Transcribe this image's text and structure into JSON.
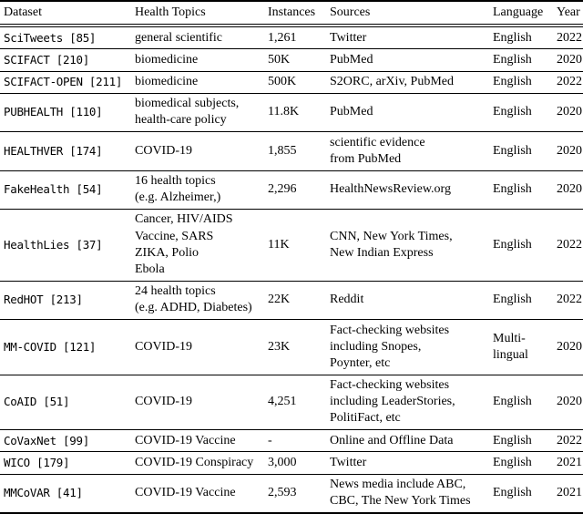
{
  "table": {
    "columns": [
      {
        "key": "dataset",
        "label": "Dataset"
      },
      {
        "key": "topics",
        "label": "Health Topics"
      },
      {
        "key": "instances",
        "label": "Instances"
      },
      {
        "key": "sources",
        "label": "Sources"
      },
      {
        "key": "language",
        "label": "Language"
      },
      {
        "key": "year",
        "label": "Year"
      }
    ],
    "rows": [
      {
        "dataset": "SciTweets [85]",
        "topics": "general scientific",
        "instances": "1,261",
        "sources": "Twitter",
        "language": "English",
        "year": "2022"
      },
      {
        "dataset": "SCIFACT [210]",
        "topics": "biomedicine",
        "instances": "50K",
        "sources": "PubMed",
        "language": "English",
        "year": "2020"
      },
      {
        "dataset": "SCIFACT-OPEN [211]",
        "topics": "biomedicine",
        "instances": "500K",
        "sources": "S2ORC, arXiv, PubMed",
        "language": "English",
        "year": "2022"
      },
      {
        "dataset": "PUBHEALTH [110]",
        "topics": "biomedical subjects,\nhealth-care policy",
        "instances": "11.8K",
        "sources": "PubMed",
        "language": "English",
        "year": "2020"
      },
      {
        "dataset": "HEALTHVER [174]",
        "topics": "COVID-19",
        "instances": "1,855",
        "sources": "scientific evidence\nfrom PubMed",
        "language": "English",
        "year": "2020"
      },
      {
        "dataset": "FakeHealth [54]",
        "topics": "16 health topics\n(e.g. Alzheimer,)",
        "instances": "2,296",
        "sources": "HealthNewsReview.org",
        "language": "English",
        "year": "2020"
      },
      {
        "dataset": "HealthLies [37]",
        "topics": "Cancer, HIV/AIDS\nVaccine, SARS\nZIKA, Polio\nEbola",
        "instances": "11K",
        "sources": "CNN, New York Times,\nNew Indian Express",
        "language": "English",
        "year": "2022"
      },
      {
        "dataset": "RedHOT [213]",
        "topics": "24 health topics\n(e.g. ADHD, Diabetes)",
        "instances": "22K",
        "sources": "Reddit",
        "language": "English",
        "year": "2022"
      },
      {
        "dataset": "MM-COVID [121]",
        "topics": "COVID-19",
        "instances": "23K",
        "sources": "Fact-checking websites\nincluding Snopes,\nPoynter, etc",
        "language": "Multi-\nlingual",
        "year": "2020"
      },
      {
        "dataset": "CoAID [51]",
        "topics": "COVID-19",
        "instances": "4,251",
        "sources": "Fact-checking websites\nincluding LeaderStories,\nPolitiFact, etc",
        "language": "English",
        "year": "2020"
      },
      {
        "dataset": "CoVaxNet [99]",
        "topics": "COVID-19 Vaccine",
        "instances": "-",
        "sources": "Online and Offline Data",
        "language": "English",
        "year": "2022"
      },
      {
        "dataset": "WICO [179]",
        "topics": "COVID-19 Conspiracy",
        "instances": "3,000",
        "sources": "Twitter",
        "language": "English",
        "year": "2021"
      },
      {
        "dataset": "MMCoVAR [41]",
        "topics": "COVID-19 Vaccine",
        "instances": "2,593",
        "sources": "News media include ABC,\nCBC, The New York Times",
        "language": "English",
        "year": "2021"
      }
    ]
  }
}
